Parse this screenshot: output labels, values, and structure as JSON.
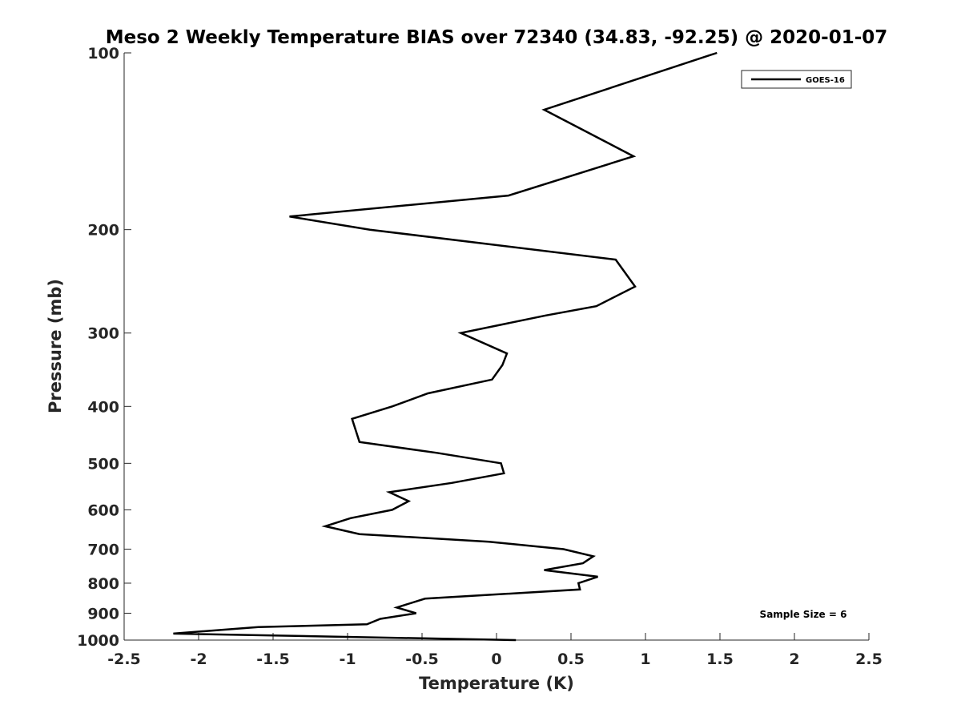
{
  "chart_data": {
    "type": "line",
    "title": "Meso 2 Weekly Temperature BIAS over 72340 (34.83, -92.25) @ 2020-01-07",
    "xlabel": "Temperature (K)",
    "ylabel": "Pressure (mb)",
    "xlim": [
      -2.5,
      2.5
    ],
    "ylim": [
      100,
      1000
    ],
    "yscale": "log",
    "y_reversed": true,
    "grid": false,
    "legend_position": "top-right",
    "x_ticks": [
      -2.5,
      -2,
      -1.5,
      -1,
      -0.5,
      0,
      0.5,
      1,
      1.5,
      2,
      2.5
    ],
    "x_tick_labels": [
      "-2.5",
      "-2",
      "-1.5",
      "-1",
      "-0.5",
      "0",
      "0.5",
      "1",
      "1.5",
      "2",
      "2.5"
    ],
    "y_ticks": [
      100,
      200,
      300,
      400,
      500,
      600,
      700,
      800,
      900,
      1000
    ],
    "y_tick_labels": [
      "100",
      "200",
      "300",
      "400",
      "500",
      "600",
      "700",
      "800",
      "900",
      "1000"
    ],
    "annotation": "Sample Size = 6",
    "series": [
      {
        "name": "GOES-16",
        "color": "#000000",
        "points": [
          {
            "x": 1.48,
            "y": 100
          },
          {
            "x": 0.32,
            "y": 125
          },
          {
            "x": 0.92,
            "y": 150
          },
          {
            "x": 0.08,
            "y": 175
          },
          {
            "x": -1.39,
            "y": 190
          },
          {
            "x": -0.85,
            "y": 200
          },
          {
            "x": 0.8,
            "y": 225
          },
          {
            "x": 0.93,
            "y": 250
          },
          {
            "x": 0.67,
            "y": 270
          },
          {
            "x": 0.33,
            "y": 280
          },
          {
            "x": -0.24,
            "y": 300
          },
          {
            "x": 0.07,
            "y": 325
          },
          {
            "x": 0.04,
            "y": 340
          },
          {
            "x": -0.03,
            "y": 360
          },
          {
            "x": -0.46,
            "y": 380
          },
          {
            "x": -0.7,
            "y": 400
          },
          {
            "x": -0.97,
            "y": 420
          },
          {
            "x": -0.92,
            "y": 460
          },
          {
            "x": -0.4,
            "y": 480
          },
          {
            "x": 0.03,
            "y": 500
          },
          {
            "x": 0.05,
            "y": 520
          },
          {
            "x": -0.3,
            "y": 540
          },
          {
            "x": -0.72,
            "y": 560
          },
          {
            "x": -0.59,
            "y": 580
          },
          {
            "x": -0.7,
            "y": 600
          },
          {
            "x": -0.98,
            "y": 620
          },
          {
            "x": -1.15,
            "y": 640
          },
          {
            "x": -0.92,
            "y": 660
          },
          {
            "x": -0.05,
            "y": 680
          },
          {
            "x": 0.45,
            "y": 700
          },
          {
            "x": 0.65,
            "y": 720
          },
          {
            "x": 0.58,
            "y": 740
          },
          {
            "x": 0.32,
            "y": 760
          },
          {
            "x": 0.68,
            "y": 780
          },
          {
            "x": 0.55,
            "y": 800
          },
          {
            "x": 0.56,
            "y": 820
          },
          {
            "x": -0.48,
            "y": 850
          },
          {
            "x": -0.67,
            "y": 880
          },
          {
            "x": -0.54,
            "y": 900
          },
          {
            "x": -0.78,
            "y": 920
          },
          {
            "x": -0.87,
            "y": 940
          },
          {
            "x": -1.6,
            "y": 950
          },
          {
            "x": -2.17,
            "y": 975
          },
          {
            "x": 0.13,
            "y": 1000
          }
        ]
      }
    ]
  }
}
